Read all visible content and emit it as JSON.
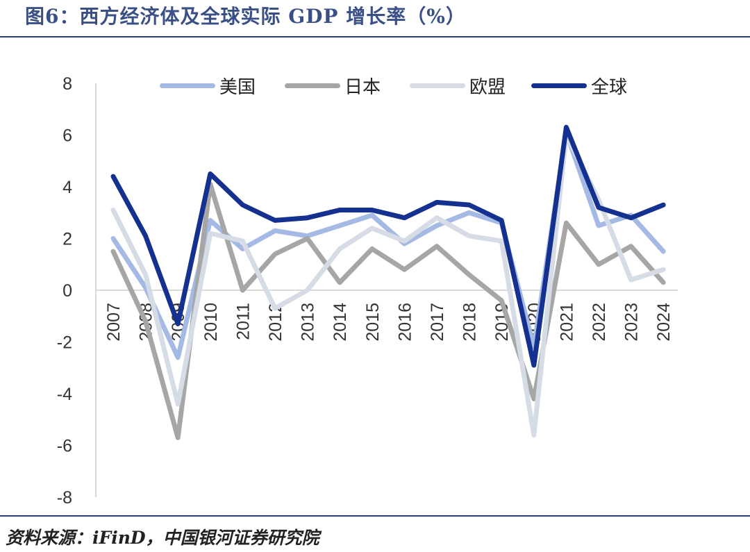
{
  "title": "图6：西方经济体及全球实际 GDP 增长率（%）",
  "source": "资料来源：iFinD，中国银河证券研究院",
  "chart_data": {
    "type": "line",
    "title": "图6：西方经济体及全球实际 GDP 增长率（%）",
    "xlabel": "",
    "ylabel": "",
    "categories": [
      "2007",
      "2008",
      "2009",
      "2010",
      "2011",
      "2012",
      "2013",
      "2014",
      "2015",
      "2016",
      "2017",
      "2018",
      "2019",
      "2020",
      "2021",
      "2022",
      "2023",
      "2024"
    ],
    "ylim": [
      -8,
      8
    ],
    "yticks": [
      8,
      6,
      4,
      2,
      0,
      -2,
      -4,
      -6,
      -8
    ],
    "legend_position": "top",
    "series": [
      {
        "name": "美国",
        "color": "#a4b9e4",
        "values": [
          2.0,
          0.1,
          -2.6,
          2.7,
          1.6,
          2.3,
          2.1,
          2.5,
          2.9,
          1.8,
          2.5,
          3.0,
          2.6,
          -2.2,
          6.1,
          2.5,
          2.9,
          1.5
        ]
      },
      {
        "name": "日本",
        "color": "#a6a6a6",
        "values": [
          1.5,
          -1.2,
          -5.7,
          4.1,
          0.0,
          1.4,
          2.0,
          0.3,
          1.6,
          0.8,
          1.7,
          0.6,
          -0.4,
          -4.2,
          2.6,
          1.0,
          1.7,
          0.3
        ]
      },
      {
        "name": "欧盟",
        "color": "#d6dce5",
        "values": [
          3.1,
          0.6,
          -4.4,
          2.2,
          1.9,
          -0.7,
          0.0,
          1.6,
          2.4,
          1.9,
          2.8,
          2.1,
          1.9,
          -5.6,
          6.0,
          3.5,
          0.4,
          0.8
        ]
      },
      {
        "name": "全球",
        "color": "#14318f",
        "values": [
          4.4,
          2.1,
          -1.3,
          4.5,
          3.3,
          2.7,
          2.8,
          3.1,
          3.1,
          2.8,
          3.4,
          3.3,
          2.7,
          -2.9,
          6.3,
          3.2,
          2.8,
          3.3
        ]
      }
    ]
  }
}
